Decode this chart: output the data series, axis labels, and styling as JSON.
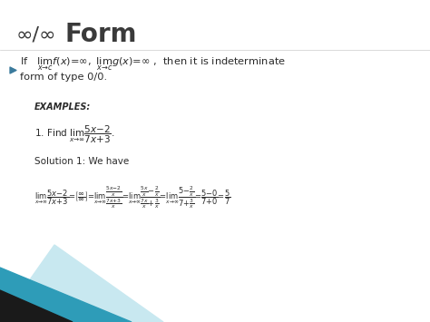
{
  "title_inf": "∞/∞",
  "title_form": "Form",
  "title_color": "#3a3a3a",
  "title_fontsize_inf": 16,
  "title_fontsize_form": 20,
  "bg_color": "#ffffff",
  "bullet_color": "#3a7a9c",
  "text_color": "#2a2a2a",
  "body_fontsize": 9,
  "examples_fontsize": 7.5,
  "teal_color": "#2e9cb8",
  "dark_color": "#1a1a1a",
  "light_teal_color": "#c8e8f0"
}
